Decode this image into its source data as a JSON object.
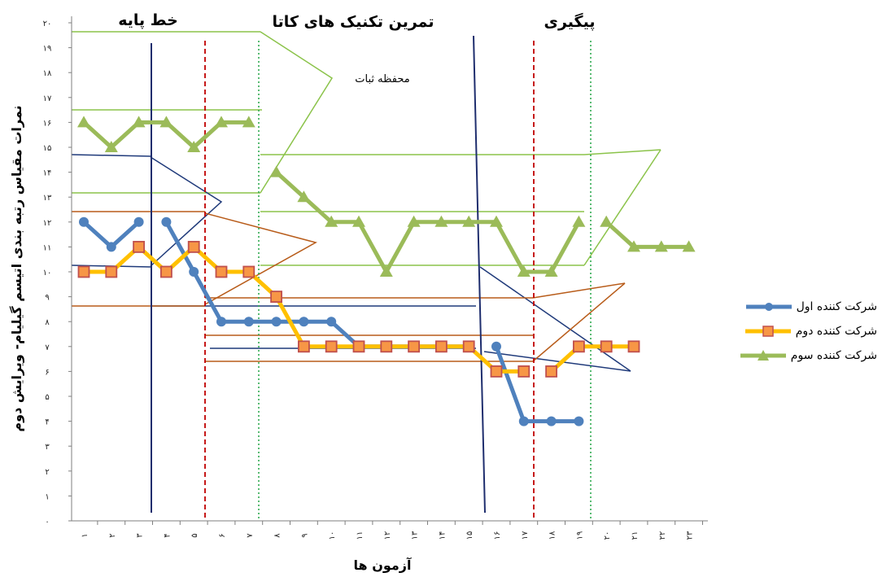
{
  "chart_data": {
    "type": "line",
    "xlabel": "آزمون ها",
    "ylabel": "نمرات مقیاس رتبه بندی اتیسم گیلیام- ویرایش دوم",
    "ylim": [
      0,
      20
    ],
    "y_ticks": [
      "۰",
      "۱",
      "۲",
      "۳",
      "۴",
      "۵",
      "۶",
      "۷",
      "۸",
      "۹",
      "۱۰",
      "۱۱",
      "۱۲",
      "۱۳",
      "۱۴",
      "۱۵",
      "۱۶",
      "۱۷",
      "۱۸",
      "۱۹",
      "۲۰"
    ],
    "x": [
      1,
      2,
      3,
      4,
      5,
      6,
      7,
      8,
      9,
      10,
      11,
      12,
      13,
      14,
      15,
      16,
      17,
      18,
      19,
      20,
      21,
      22,
      23
    ],
    "x_ticks": [
      "۱",
      "۲",
      "۳",
      "۴",
      "۵",
      "۶",
      "۷",
      "۸",
      "۹",
      "۱۰",
      "۱۱",
      "۱۲",
      "۱۳",
      "۱۴",
      "۱۵",
      "۱۶",
      "۱۷",
      "۱۸",
      "۱۹",
      "۲۰",
      "۲۱",
      "۲۲",
      "۲۳"
    ],
    "phases": [
      {
        "label": "خط پایه"
      },
      {
        "label": "تمرین تکنیک های کاتا"
      },
      {
        "label": "پیگیری"
      }
    ],
    "annotation": "محفظه ثبات",
    "series": [
      {
        "name": "شرکت کننده اول",
        "color": "#4F81BD",
        "marker": "circle",
        "segments": [
          [
            [
              1,
              12
            ],
            [
              2,
              11
            ],
            [
              3,
              12
            ]
          ],
          [
            [
              4,
              12
            ],
            [
              5,
              10
            ],
            [
              6,
              8
            ],
            [
              7,
              8
            ],
            [
              8,
              8
            ],
            [
              9,
              8
            ],
            [
              10,
              8
            ],
            [
              11,
              7
            ],
            [
              12,
              7
            ],
            [
              13,
              7
            ],
            [
              14,
              7
            ],
            [
              15,
              7
            ]
          ],
          [
            [
              16,
              7
            ],
            [
              17,
              4
            ],
            [
              18,
              4
            ],
            [
              19,
              4
            ]
          ]
        ]
      },
      {
        "name": "شرکت کننده دوم",
        "color": "#FFC000",
        "marker": "square",
        "segments": [
          [
            [
              1,
              10
            ],
            [
              2,
              10
            ],
            [
              3,
              11
            ],
            [
              4,
              10
            ],
            [
              5,
              11
            ],
            [
              6,
              10
            ],
            [
              7,
              10
            ],
            [
              8,
              9
            ],
            [
              9,
              7
            ],
            [
              10,
              7
            ],
            [
              11,
              7
            ],
            [
              12,
              7
            ],
            [
              13,
              7
            ],
            [
              14,
              7
            ],
            [
              15,
              7
            ],
            [
              16,
              6
            ],
            [
              17,
              6
            ]
          ],
          [
            [
              18,
              6
            ],
            [
              19,
              7
            ],
            [
              20,
              7
            ],
            [
              21,
              7
            ]
          ]
        ]
      },
      {
        "name": "شرکت کننده سوم",
        "color": "#9BBB59",
        "marker": "triangle",
        "segments": [
          [
            [
              1,
              16
            ],
            [
              2,
              15
            ],
            [
              3,
              16
            ],
            [
              4,
              16
            ],
            [
              5,
              15
            ],
            [
              6,
              16
            ],
            [
              7,
              16
            ]
          ],
          [
            [
              8,
              14
            ],
            [
              9,
              13
            ],
            [
              10,
              12
            ],
            [
              11,
              12
            ],
            [
              12,
              10
            ],
            [
              13,
              12
            ],
            [
              14,
              12
            ],
            [
              15,
              12
            ],
            [
              16,
              12
            ],
            [
              17,
              10
            ],
            [
              18,
              10
            ],
            [
              19,
              12
            ]
          ],
          [
            [
              20,
              12
            ],
            [
              21,
              11
            ],
            [
              22,
              11
            ],
            [
              23,
              11
            ]
          ]
        ]
      }
    ]
  }
}
